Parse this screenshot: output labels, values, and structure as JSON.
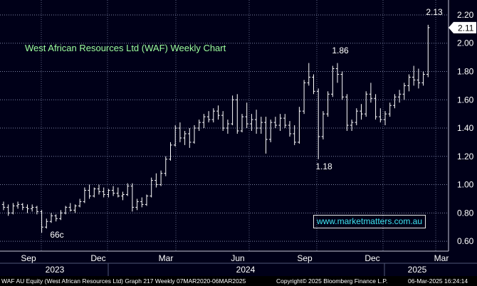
{
  "chart_data": {
    "type": "bar",
    "title": "West African Resources Ltd (WAF) Weekly Chart",
    "y_axis_ticks": [
      "0.60",
      "0.80",
      "1.00",
      "1.20",
      "1.40",
      "1.60",
      "1.80",
      "2.00",
      "2.20"
    ],
    "ylim": [
      0.52,
      2.23
    ],
    "last_price_label": "2.11",
    "annotations": [
      {
        "text": "66c",
        "price": 0.66
      },
      {
        "text": "1.18",
        "price": 1.18
      },
      {
        "text": "1.86",
        "price": 1.86
      },
      {
        "text": "2.13",
        "price": 2.13
      }
    ],
    "x_month_labels": [
      "Sep",
      "Dec",
      "Mar",
      "Jun",
      "Sep",
      "Dec",
      "Mar"
    ],
    "x_year_labels": [
      "2023",
      "2024",
      "2025"
    ],
    "grid": true,
    "colors": {
      "background": "#000018",
      "bars": "#ffffff",
      "grid": "#9aa4c8",
      "title": "#9dff9d",
      "watermark": "#3fe6f0"
    },
    "series": [
      {
        "values": [
          [
            0.86,
            0.88,
            0.82,
            0.84
          ],
          [
            0.84,
            0.86,
            0.78,
            0.8
          ],
          [
            0.8,
            0.87,
            0.79,
            0.85
          ],
          [
            0.85,
            0.88,
            0.83,
            0.86
          ],
          [
            0.86,
            0.87,
            0.82,
            0.84
          ],
          [
            0.84,
            0.86,
            0.8,
            0.83
          ],
          [
            0.83,
            0.86,
            0.81,
            0.84
          ],
          [
            0.84,
            0.85,
            0.79,
            0.81
          ],
          [
            0.81,
            0.82,
            0.66,
            0.7
          ],
          [
            0.7,
            0.76,
            0.69,
            0.74
          ],
          [
            0.74,
            0.8,
            0.73,
            0.78
          ],
          [
            0.78,
            0.79,
            0.74,
            0.76
          ],
          [
            0.76,
            0.82,
            0.75,
            0.8
          ],
          [
            0.8,
            0.85,
            0.79,
            0.84
          ],
          [
            0.84,
            0.87,
            0.81,
            0.82
          ],
          [
            0.82,
            0.86,
            0.8,
            0.85
          ],
          [
            0.85,
            0.9,
            0.84,
            0.88
          ],
          [
            0.88,
            0.98,
            0.87,
            0.96
          ],
          [
            0.96,
            1.0,
            0.9,
            0.92
          ],
          [
            0.92,
            0.98,
            0.91,
            0.97
          ],
          [
            0.97,
            1.0,
            0.93,
            0.95
          ],
          [
            0.95,
            0.98,
            0.91,
            0.93
          ],
          [
            0.93,
            0.97,
            0.91,
            0.96
          ],
          [
            0.96,
            0.99,
            0.92,
            0.94
          ],
          [
            0.94,
            0.98,
            0.91,
            0.92
          ],
          [
            0.92,
            0.95,
            0.89,
            0.93
          ],
          [
            0.93,
            1.01,
            0.92,
            0.99
          ],
          [
            0.99,
            1.01,
            0.81,
            0.84
          ],
          [
            0.84,
            0.9,
            0.82,
            0.88
          ],
          [
            0.88,
            0.91,
            0.84,
            0.86
          ],
          [
            0.86,
            0.93,
            0.85,
            0.92
          ],
          [
            0.92,
            1.05,
            0.91,
            1.03
          ],
          [
            1.03,
            1.08,
            0.98,
            1.0
          ],
          [
            1.0,
            1.1,
            0.99,
            1.08
          ],
          [
            1.08,
            1.2,
            1.06,
            1.18
          ],
          [
            1.18,
            1.3,
            1.17,
            1.28
          ],
          [
            1.28,
            1.42,
            1.27,
            1.4
          ],
          [
            1.4,
            1.44,
            1.3,
            1.33
          ],
          [
            1.33,
            1.38,
            1.28,
            1.36
          ],
          [
            1.36,
            1.4,
            1.26,
            1.3
          ],
          [
            1.3,
            1.42,
            1.29,
            1.4
          ],
          [
            1.4,
            1.46,
            1.38,
            1.44
          ],
          [
            1.44,
            1.5,
            1.4,
            1.48
          ],
          [
            1.48,
            1.52,
            1.44,
            1.46
          ],
          [
            1.46,
            1.54,
            1.44,
            1.52
          ],
          [
            1.52,
            1.56,
            1.46,
            1.49
          ],
          [
            1.49,
            1.52,
            1.38,
            1.4
          ],
          [
            1.4,
            1.46,
            1.36,
            1.43
          ],
          [
            1.43,
            1.63,
            1.42,
            1.6
          ],
          [
            1.6,
            1.64,
            1.36,
            1.38
          ],
          [
            1.38,
            1.5,
            1.37,
            1.48
          ],
          [
            1.48,
            1.58,
            1.4,
            1.43
          ],
          [
            1.43,
            1.5,
            1.38,
            1.46
          ],
          [
            1.46,
            1.53,
            1.36,
            1.4
          ],
          [
            1.4,
            1.48,
            1.36,
            1.44
          ],
          [
            1.44,
            1.48,
            1.22,
            1.32
          ],
          [
            1.32,
            1.46,
            1.3,
            1.44
          ],
          [
            1.44,
            1.48,
            1.4,
            1.42
          ],
          [
            1.42,
            1.5,
            1.38,
            1.47
          ],
          [
            1.47,
            1.5,
            1.4,
            1.42
          ],
          [
            1.42,
            1.45,
            1.34,
            1.36
          ],
          [
            1.36,
            1.42,
            1.28,
            1.3
          ],
          [
            1.3,
            1.55,
            1.29,
            1.52
          ],
          [
            1.52,
            1.74,
            1.5,
            1.72
          ],
          [
            1.72,
            1.86,
            1.7,
            1.76
          ],
          [
            1.76,
            1.78,
            1.64,
            1.66
          ],
          [
            1.66,
            1.68,
            1.18,
            1.34
          ],
          [
            1.34,
            1.52,
            1.32,
            1.5
          ],
          [
            1.5,
            1.66,
            1.48,
            1.64
          ],
          [
            1.64,
            1.84,
            1.62,
            1.82
          ],
          [
            1.82,
            1.86,
            1.72,
            1.78
          ],
          [
            1.78,
            1.8,
            1.6,
            1.62
          ],
          [
            1.62,
            1.64,
            1.38,
            1.42
          ],
          [
            1.42,
            1.46,
            1.38,
            1.44
          ],
          [
            1.44,
            1.54,
            1.42,
            1.52
          ],
          [
            1.52,
            1.57,
            1.46,
            1.5
          ],
          [
            1.5,
            1.66,
            1.48,
            1.64
          ],
          [
            1.64,
            1.72,
            1.58,
            1.61
          ],
          [
            1.61,
            1.64,
            1.46,
            1.48
          ],
          [
            1.48,
            1.54,
            1.44,
            1.46
          ],
          [
            1.46,
            1.52,
            1.42,
            1.5
          ],
          [
            1.5,
            1.58,
            1.48,
            1.56
          ],
          [
            1.56,
            1.64,
            1.54,
            1.62
          ],
          [
            1.62,
            1.67,
            1.58,
            1.64
          ],
          [
            1.64,
            1.72,
            1.6,
            1.7
          ],
          [
            1.7,
            1.78,
            1.66,
            1.76
          ],
          [
            1.76,
            1.84,
            1.7,
            1.74
          ],
          [
            1.74,
            1.82,
            1.68,
            1.72
          ],
          [
            1.72,
            1.8,
            1.7,
            1.78
          ],
          [
            1.78,
            2.13,
            1.76,
            2.11
          ]
        ]
      }
    ]
  },
  "footer": {
    "left": "WAF AU Equity (West African Resources Ltd) Graph 217  Weekly 07MAR2020-06MAR2025",
    "copyright": "Copyright© 2025 Bloomberg Finance L.P.",
    "timestamp": "06-Mar-2025 16:24:14"
  },
  "watermark": "www.marketmatters.com.au"
}
